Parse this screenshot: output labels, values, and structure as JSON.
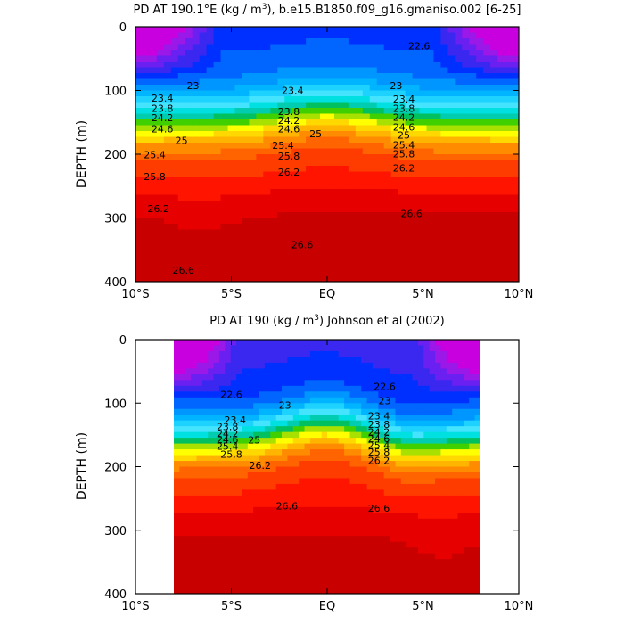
{
  "chart_data": [
    {
      "type": "contour",
      "title": "PD AT 190.1°E (kg / m³), b.e15.B1850.f09_g16.gmaniso.002 [6-25]",
      "title_parts": {
        "before_exp": "PD AT 190.1°E (kg / m",
        "exp": "3",
        "after_exp": "), b.e15.B1850.f09_g16.gmaniso.002 [6-25]"
      },
      "xlabel": "",
      "ylabel": "DEPTH (m)",
      "xlim": [
        -10,
        10
      ],
      "ylim": [
        0,
        400
      ],
      "y_inverted": true,
      "x_ticks": [
        -10,
        -5,
        0,
        5,
        10
      ],
      "x_tick_labels": [
        "10°S",
        "5°S",
        "EQ",
        "5°N",
        "10°N"
      ],
      "y_ticks": [
        0,
        100,
        200,
        300,
        400
      ],
      "y_tick_labels": [
        "0",
        "100",
        "200",
        "300",
        "400"
      ],
      "data_xlim": [
        -10,
        10
      ],
      "contour_interval": 0.2,
      "contour_range": [
        21.6,
        27.0
      ],
      "contour_labels": [
        {
          "text": "22.6",
          "x": 4.8,
          "y": 30
        },
        {
          "text": "23",
          "x": -7.0,
          "y": 92
        },
        {
          "text": "23.4",
          "x": -8.6,
          "y": 112
        },
        {
          "text": "23.4",
          "x": -1.8,
          "y": 100
        },
        {
          "text": "23",
          "x": 3.6,
          "y": 92
        },
        {
          "text": "23.4",
          "x": 4.0,
          "y": 113
        },
        {
          "text": "23.8",
          "x": -8.6,
          "y": 128
        },
        {
          "text": "24.2",
          "x": -8.6,
          "y": 143
        },
        {
          "text": "24.6",
          "x": -8.6,
          "y": 160
        },
        {
          "text": "25",
          "x": -7.6,
          "y": 178
        },
        {
          "text": "25.4",
          "x": -9.0,
          "y": 201
        },
        {
          "text": "25.8",
          "x": -9.0,
          "y": 235
        },
        {
          "text": "26.2",
          "x": -8.8,
          "y": 285
        },
        {
          "text": "26.6",
          "x": -7.5,
          "y": 382
        },
        {
          "text": "23.8",
          "x": -2.0,
          "y": 133
        },
        {
          "text": "24.2",
          "x": -2.0,
          "y": 147
        },
        {
          "text": "24.6",
          "x": -2.0,
          "y": 160
        },
        {
          "text": "25",
          "x": -0.6,
          "y": 168
        },
        {
          "text": "25.4",
          "x": -2.3,
          "y": 186
        },
        {
          "text": "25.8",
          "x": -2.0,
          "y": 203
        },
        {
          "text": "26.2",
          "x": -2.0,
          "y": 228
        },
        {
          "text": "26.6",
          "x": -1.3,
          "y": 342
        },
        {
          "text": "23.8",
          "x": 4.0,
          "y": 128
        },
        {
          "text": "24.2",
          "x": 4.0,
          "y": 142
        },
        {
          "text": "24.6",
          "x": 4.0,
          "y": 157
        },
        {
          "text": "25",
          "x": 4.0,
          "y": 170
        },
        {
          "text": "25.4",
          "x": 4.0,
          "y": 185
        },
        {
          "text": "25.8",
          "x": 4.0,
          "y": 199
        },
        {
          "text": "26.2",
          "x": 4.0,
          "y": 222
        },
        {
          "text": "26.6",
          "x": 4.4,
          "y": 293
        }
      ]
    },
    {
      "type": "contour",
      "title": "PD AT 190 (kg / m³) Johnson et al (2002)",
      "title_parts": {
        "before_exp": "PD AT 190 (kg / m",
        "exp": "3",
        "after_exp": ") Johnson et al (2002)"
      },
      "xlabel": "",
      "ylabel": "DEPTH (m)",
      "xlim": [
        -10,
        10
      ],
      "ylim": [
        0,
        400
      ],
      "y_inverted": true,
      "x_ticks": [
        -10,
        -5,
        0,
        5,
        10
      ],
      "x_tick_labels": [
        "10°S",
        "5°S",
        "EQ",
        "5°N",
        "10°N"
      ],
      "y_ticks": [
        0,
        100,
        200,
        300,
        400
      ],
      "y_tick_labels": [
        "0",
        "100",
        "200",
        "300",
        "400"
      ],
      "data_xlim": [
        -8,
        8
      ],
      "contour_interval": 0.2,
      "contour_range": [
        21.6,
        27.0
      ],
      "contour_labels": [
        {
          "text": "22.6",
          "x": -5.0,
          "y": 86
        },
        {
          "text": "23",
          "x": -2.2,
          "y": 103
        },
        {
          "text": "22.6",
          "x": 3.0,
          "y": 74
        },
        {
          "text": "23",
          "x": 3.0,
          "y": 96
        },
        {
          "text": "23.4",
          "x": -4.8,
          "y": 126
        },
        {
          "text": "23.8",
          "x": -5.2,
          "y": 137
        },
        {
          "text": "24.2",
          "x": -5.2,
          "y": 148
        },
        {
          "text": "24.6",
          "x": -5.2,
          "y": 157
        },
        {
          "text": "25",
          "x": -3.8,
          "y": 158
        },
        {
          "text": "25.4",
          "x": -5.2,
          "y": 168
        },
        {
          "text": "25.8",
          "x": -5.0,
          "y": 180
        },
        {
          "text": "26.2",
          "x": -3.5,
          "y": 198
        },
        {
          "text": "26.6",
          "x": -2.1,
          "y": 262
        },
        {
          "text": "23.4",
          "x": 2.7,
          "y": 120
        },
        {
          "text": "23.8",
          "x": 2.7,
          "y": 133
        },
        {
          "text": "24.2",
          "x": 2.7,
          "y": 145
        },
        {
          "text": "24.6",
          "x": 2.7,
          "y": 156
        },
        {
          "text": "25.4",
          "x": 2.7,
          "y": 166
        },
        {
          "text": "25.8",
          "x": 2.7,
          "y": 177
        },
        {
          "text": "26.2",
          "x": 2.7,
          "y": 190
        },
        {
          "text": "26.6",
          "x": 2.7,
          "y": 265
        }
      ]
    }
  ]
}
